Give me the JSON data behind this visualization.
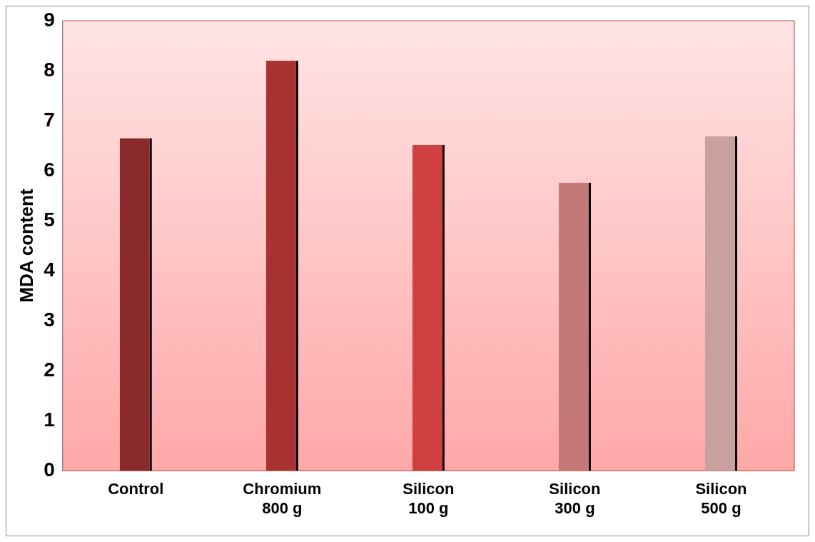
{
  "chart_data": {
    "type": "bar",
    "ylabel": "MDA content",
    "categories": [
      "Control",
      "Chromium 800 g",
      "Silicon 100 g",
      "Silicon 300 g",
      "Silicon 500 g"
    ],
    "values": [
      6.65,
      8.2,
      6.52,
      5.76,
      6.69
    ],
    "colors": [
      "#8b2a2a",
      "#a83232",
      "#d04040",
      "#c47878",
      "#c9a0a0"
    ],
    "ylim": [
      0,
      9
    ],
    "yticks": [
      0,
      1,
      2,
      3,
      4,
      5,
      6,
      7,
      8,
      9
    ],
    "grid": false,
    "legend": false
  }
}
